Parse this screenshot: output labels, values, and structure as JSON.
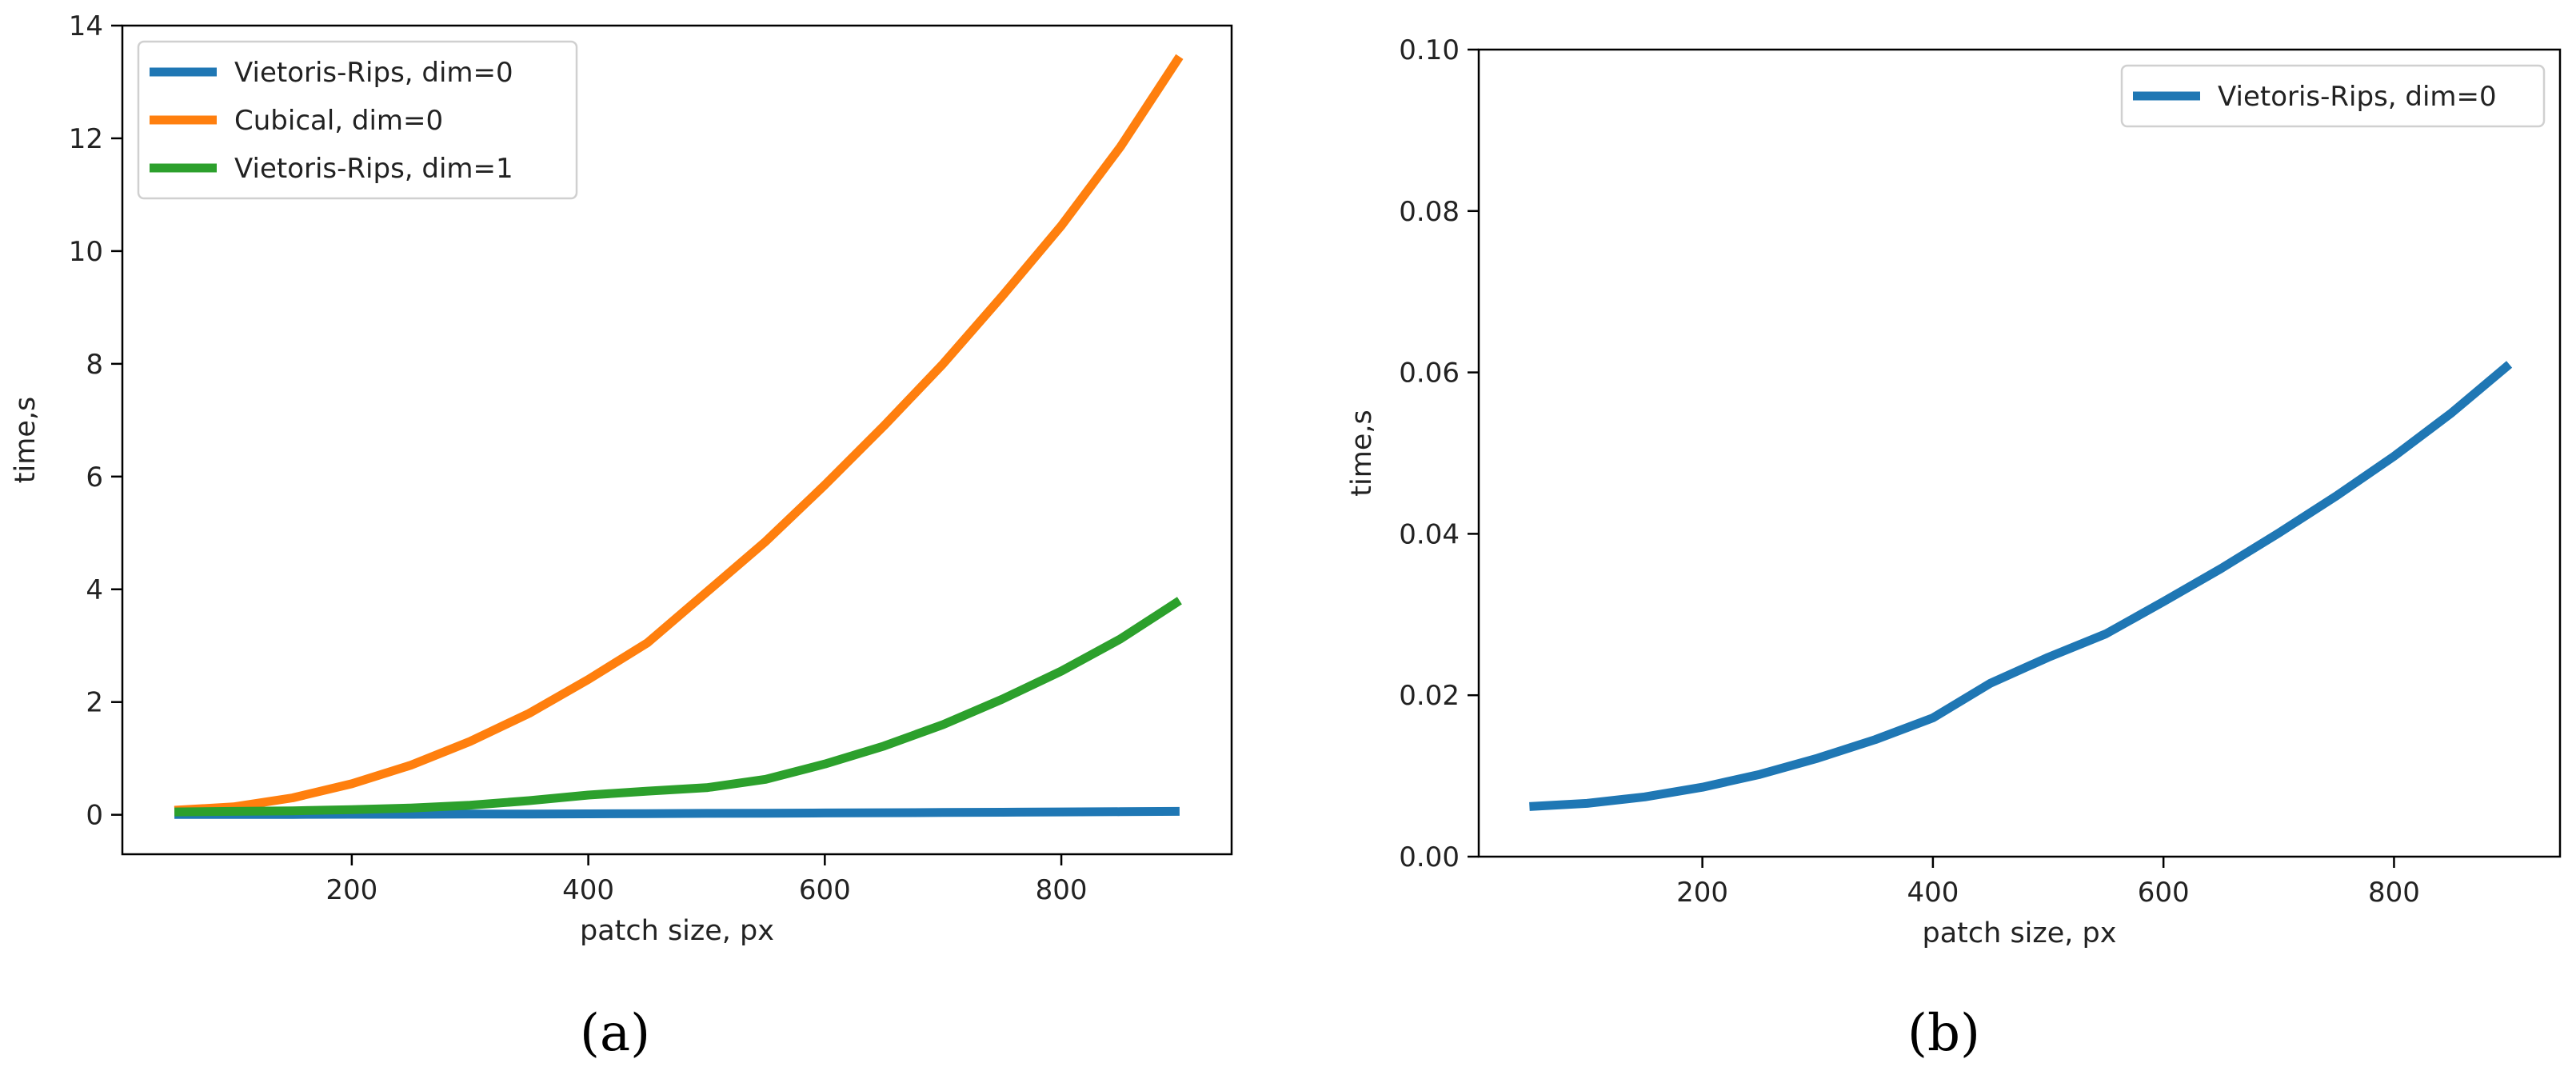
{
  "chart_data": [
    {
      "type": "line",
      "xlabel": "patch size, px",
      "ylabel": "time,s",
      "xlim": [
        6,
        944
      ],
      "ylim": [
        -0.7,
        14.0
      ],
      "x_ticks": [
        200,
        400,
        600,
        800
      ],
      "y_ticks": [
        0,
        2,
        4,
        6,
        8,
        10,
        12,
        14
      ],
      "grid": false,
      "legend_position": "top-left",
      "x": [
        50,
        100,
        150,
        200,
        250,
        300,
        350,
        400,
        450,
        500,
        550,
        600,
        650,
        700,
        750,
        800,
        850,
        900
      ],
      "series": [
        {
          "name": "Vietoris-Rips, dim=0",
          "color": "#1f77b4",
          "values": [
            0.006,
            0.007,
            0.007,
            0.009,
            0.01,
            0.012,
            0.014,
            0.017,
            0.021,
            0.025,
            0.028,
            0.032,
            0.036,
            0.041,
            0.045,
            0.05,
            0.055,
            0.061
          ]
        },
        {
          "name": "Cubical, dim=0",
          "color": "#ff7f0e",
          "values": [
            0.08,
            0.14,
            0.3,
            0.55,
            0.88,
            1.3,
            1.8,
            2.4,
            3.05,
            3.95,
            4.85,
            5.85,
            6.9,
            8.0,
            9.2,
            10.45,
            11.85,
            13.45
          ]
        },
        {
          "name": "Vietoris-Rips, dim=1",
          "color": "#2ca02c",
          "values": [
            0.05,
            0.06,
            0.07,
            0.09,
            0.12,
            0.17,
            0.25,
            0.35,
            0.42,
            0.48,
            0.63,
            0.9,
            1.22,
            1.6,
            2.05,
            2.55,
            3.12,
            3.8
          ]
        }
      ],
      "panel_label": "(a)"
    },
    {
      "type": "line",
      "xlabel": "patch size, px",
      "ylabel": "time,s",
      "xlim": [
        6,
        944
      ],
      "ylim": [
        0.0,
        0.1
      ],
      "x_ticks": [
        200,
        400,
        600,
        800
      ],
      "y_ticks": [
        0.0,
        0.02,
        0.04,
        0.06,
        0.08,
        0.1
      ],
      "y_tick_labels": [
        "0.00",
        "0.02",
        "0.04",
        "0.06",
        "0.08",
        "0.10"
      ],
      "grid": false,
      "legend_position": "top-right",
      "x": [
        50,
        100,
        150,
        200,
        250,
        300,
        350,
        400,
        450,
        500,
        550,
        600,
        650,
        700,
        750,
        800,
        850,
        900
      ],
      "series": [
        {
          "name": "Vietoris-Rips, dim=0",
          "color": "#1f77b4",
          "values": [
            0.0062,
            0.0066,
            0.0074,
            0.0086,
            0.0102,
            0.0122,
            0.0145,
            0.0172,
            0.0215,
            0.0247,
            0.0276,
            0.0316,
            0.0357,
            0.0401,
            0.0447,
            0.0496,
            0.055,
            0.061
          ]
        }
      ],
      "panel_label": "(b)"
    }
  ]
}
